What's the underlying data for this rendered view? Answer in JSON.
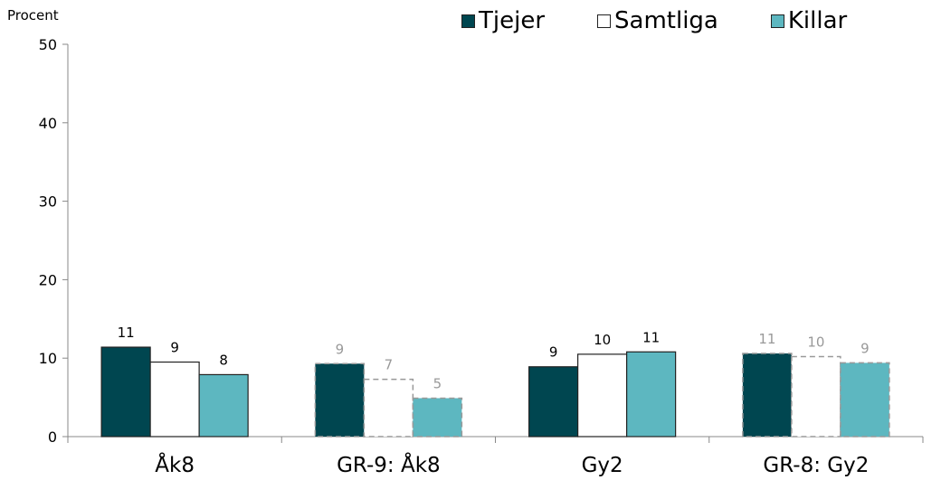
{
  "chart_data": {
    "type": "bar",
    "ylabel": "Procent",
    "ylim": [
      0,
      50
    ],
    "yticks": [
      0,
      10,
      20,
      30,
      40,
      50
    ],
    "categories": [
      "Åk8",
      "GR-9:  Åk8",
      "Gy2",
      "GR-8:  Gy2"
    ],
    "dashed_categories": [
      1,
      3
    ],
    "series": [
      {
        "name": "Tjejer",
        "color": "#004650",
        "values": [
          11.4,
          9.3,
          8.9,
          10.6
        ],
        "labels": [
          "11",
          "9",
          "9",
          "11"
        ]
      },
      {
        "name": "Samtliga",
        "color": "#ffffff",
        "values": [
          9.5,
          7.3,
          10.5,
          10.2
        ],
        "labels": [
          "9",
          "7",
          "10",
          "10"
        ]
      },
      {
        "name": "Killar",
        "color": "#5db7c0",
        "values": [
          7.9,
          4.9,
          10.8,
          9.4
        ],
        "labels": [
          "8",
          "5",
          "11",
          "9"
        ]
      }
    ],
    "legend_position": "top-right",
    "grid": false
  }
}
